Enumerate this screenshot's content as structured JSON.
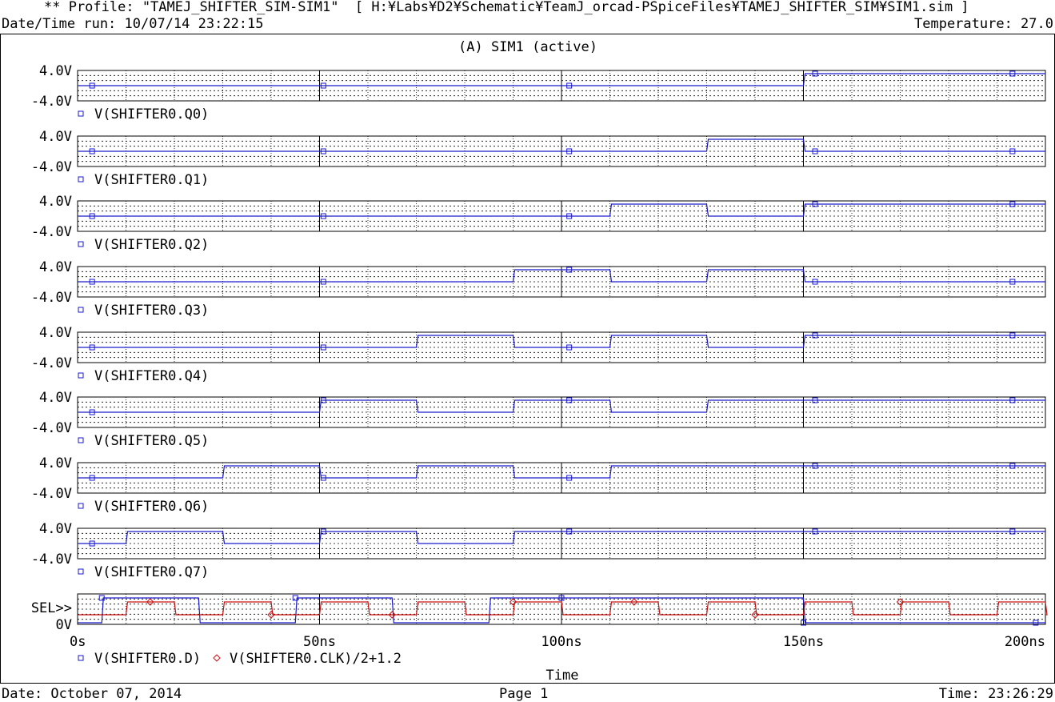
{
  "header": {
    "profile": "** Profile: \"TAMEJ_SHIFTER_SIM-SIM1\"  [ H:¥Labs¥D2¥Schematic¥TeamJ_orcad-PSpiceFiles¥TAMEJ_SHIFTER_SIM¥SIM1.sim ]",
    "datetime": "Date/Time run: 10/07/14 23:22:15",
    "temperature": "Temperature: 27.0"
  },
  "footer": {
    "date": "Date: October 07, 2014",
    "page": "Page 1",
    "time": "Time: 23:26:29"
  },
  "colors": {
    "digital": "#1a1acc",
    "analog_red": "#cc1111",
    "grid": "#000000",
    "background": "#ffffff"
  },
  "chart_data": {
    "type": "line",
    "title": "(A) SIM1 (active)",
    "xlabel": "Time",
    "xlim": [
      0,
      200
    ],
    "x_unit": "ns",
    "x_ticks": [
      "0s",
      "50ns",
      "100ns",
      "150ns",
      "200ns"
    ],
    "x_tick_values": [
      0,
      50,
      100,
      150,
      200
    ],
    "grid": true,
    "digital_panels": [
      {
        "label": "V(SHIFTER0.Q0)",
        "y_ticks": [
          "4.0V",
          "-4.0V"
        ],
        "transitions": [
          150
        ],
        "initial": 0
      },
      {
        "label": "V(SHIFTER0.Q1)",
        "y_ticks": [
          "4.0V",
          "-4.0V"
        ],
        "transitions": [
          130,
          150
        ],
        "initial": 0
      },
      {
        "label": "V(SHIFTER0.Q2)",
        "y_ticks": [
          "4.0V",
          "-4.0V"
        ],
        "transitions": [
          110,
          130,
          150
        ],
        "initial": 0
      },
      {
        "label": "V(SHIFTER0.Q3)",
        "y_ticks": [
          "4.0V",
          "-4.0V"
        ],
        "transitions": [
          90,
          110,
          130,
          150
        ],
        "initial": 0
      },
      {
        "label": "V(SHIFTER0.Q4)",
        "y_ticks": [
          "4.0V",
          "-4.0V"
        ],
        "transitions": [
          70,
          90,
          110,
          130,
          150
        ],
        "initial": 0
      },
      {
        "label": "V(SHIFTER0.Q5)",
        "y_ticks": [
          "4.0V",
          "-4.0V"
        ],
        "transitions": [
          50,
          70,
          90,
          110,
          130
        ],
        "initial": 0
      },
      {
        "label": "V(SHIFTER0.Q6)",
        "y_ticks": [
          "4.0V",
          "-4.0V"
        ],
        "transitions": [
          30,
          50,
          70,
          90,
          110
        ],
        "initial": 0
      },
      {
        "label": "V(SHIFTER0.Q7)",
        "y_ticks": [
          "4.0V",
          "-4.0V"
        ],
        "transitions": [
          10,
          30,
          50,
          70,
          90
        ],
        "initial": 0
      }
    ],
    "bottom_panel": {
      "y_ticks": [
        "SEL>>",
        "0V"
      ],
      "series": [
        {
          "name": "V(SHIFTER0.D)",
          "color": "#1a1acc",
          "marker": "square",
          "transitions": [
            5,
            25,
            45,
            65,
            85,
            150
          ],
          "initial": 0
        },
        {
          "name": "V(SHIFTER0.CLK)/2+1.2",
          "color": "#cc1111",
          "marker": "diamond",
          "transitions": [
            10,
            20,
            30,
            40,
            50,
            60,
            70,
            80,
            90,
            100,
            110,
            120,
            130,
            140,
            150,
            160,
            170,
            180,
            190,
            200
          ],
          "initial": 0
        }
      ]
    }
  }
}
